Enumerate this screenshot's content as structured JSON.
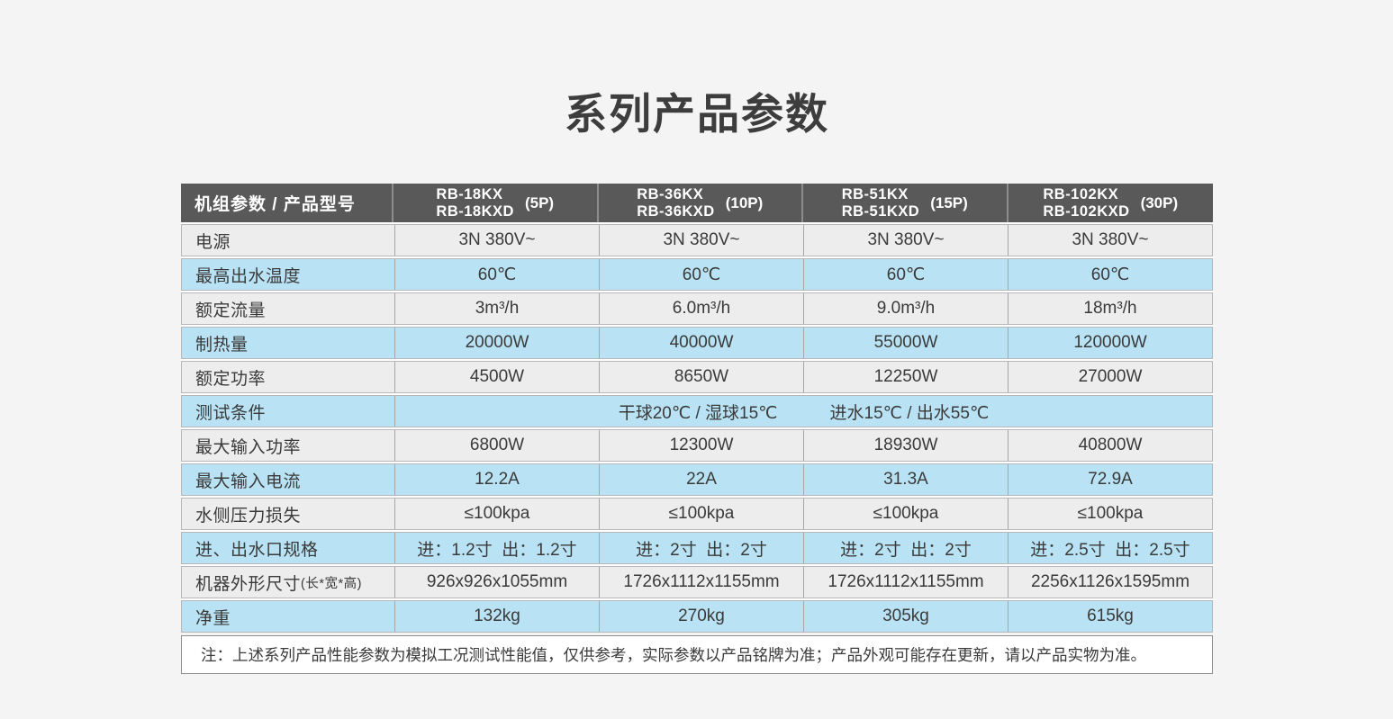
{
  "page": {
    "title": "系列产品参数",
    "note": "注：上述系列产品性能参数为模拟工况测试性能值，仅供参考，实际参数以产品铭牌为准；产品外观可能存在更新，请以产品实物为准。"
  },
  "colors": {
    "header_bg": "#595959",
    "row_gray": "#ededed",
    "row_blue": "#b9e3f4",
    "border": "#a6a6a6",
    "text": "#3a3a3a",
    "note_bg": "#ffffff",
    "page_bg": "#f4f4f4"
  },
  "table": {
    "corner_label": "机组参数 / 产品型号",
    "models": [
      {
        "line1": "RB-18KX",
        "line2": "RB-18KXD",
        "hp": "(5P)"
      },
      {
        "line1": "RB-36KX",
        "line2": "RB-36KXD",
        "hp": "(10P)"
      },
      {
        "line1": "RB-51KX",
        "line2": "RB-51KXD",
        "hp": "(15P)"
      },
      {
        "line1": "RB-102KX",
        "line2": "RB-102KXD",
        "hp": "(30P)"
      }
    ],
    "rows": [
      {
        "label": "电源",
        "values": [
          "3N 380V~",
          "3N 380V~",
          "3N 380V~",
          "3N 380V~"
        ]
      },
      {
        "label": "最高出水温度",
        "values": [
          "60℃",
          "60℃",
          "60℃",
          "60℃"
        ]
      },
      {
        "label": "额定流量",
        "values": [
          "3m³/h",
          "6.0m³/h",
          "9.0m³/h",
          "18m³/h"
        ]
      },
      {
        "label": "制热量",
        "values": [
          "20000W",
          "40000W",
          "55000W",
          "120000W"
        ]
      },
      {
        "label": "额定功率",
        "values": [
          "4500W",
          "8650W",
          "12250W",
          "27000W"
        ]
      },
      {
        "label": "测试条件",
        "values": [
          "干球20℃ / 湿球15℃",
          "进水15℃ / 出水55℃"
        ]
      },
      {
        "label": "最大输入功率",
        "values": [
          "6800W",
          "12300W",
          "18930W",
          "40800W"
        ]
      },
      {
        "label": "最大输入电流",
        "values": [
          "12.2A",
          "22A",
          "31.3A",
          "72.9A"
        ]
      },
      {
        "label": "水侧压力损失",
        "values": [
          "≤100kpa",
          "≤100kpa",
          "≤100kpa",
          "≤100kpa"
        ]
      },
      {
        "label": "进、出水口规格",
        "values": [
          "进：1.2寸  出：1.2寸",
          "进：2寸  出：2寸",
          "进：2寸  出：2寸",
          "进：2.5寸  出：2.5寸"
        ]
      },
      {
        "label": "机器外形尺寸",
        "label_suffix": "(长*宽*高)",
        "values": [
          "926x926x1055mm",
          "1726x1112x1155mm",
          "1726x1112x1155mm",
          "2256x1126x1595mm"
        ]
      },
      {
        "label": "净重",
        "values": [
          "132kg",
          "270kg",
          "305kg",
          "615kg"
        ]
      }
    ]
  }
}
